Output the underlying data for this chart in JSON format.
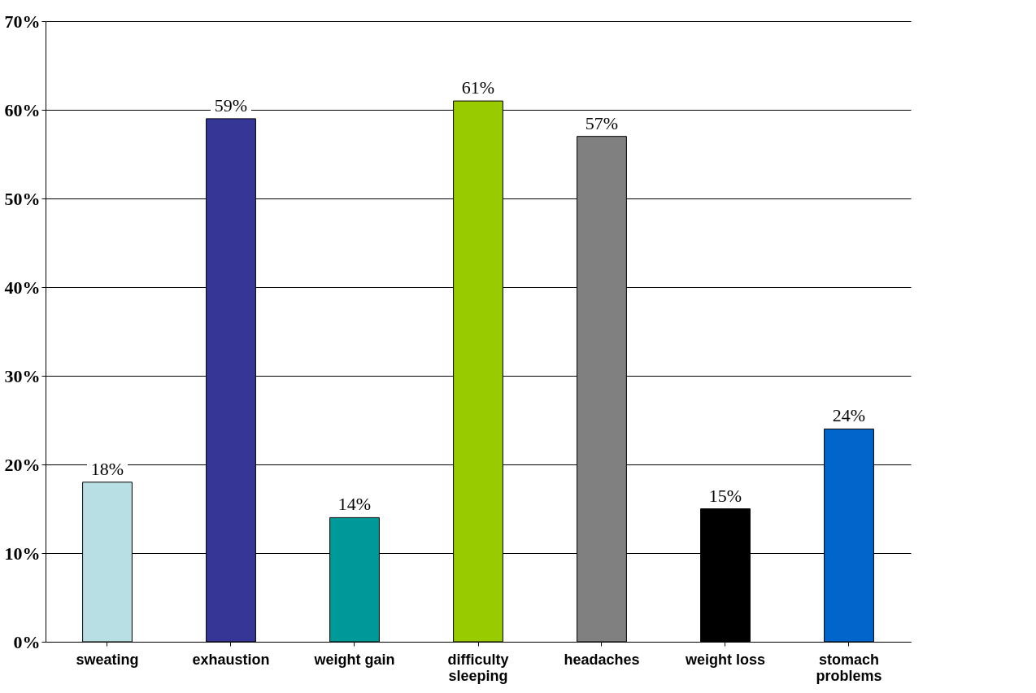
{
  "chart_data": {
    "type": "bar",
    "categories": [
      "sweating",
      "exhaustion",
      "weight gain",
      "difficulty sleeping",
      "headaches",
      "weight loss",
      "stomach problems"
    ],
    "values": [
      18,
      59,
      14,
      61,
      57,
      15,
      24
    ],
    "colors": [
      "#b8e0e4",
      "#363696",
      "#009999",
      "#99cc00",
      "#808080",
      "#000000",
      "#0066cc"
    ],
    "value_labels": [
      "18%",
      "59%",
      "14%",
      "61%",
      "57%",
      "15%",
      "24%"
    ],
    "ylim": [
      0,
      70
    ],
    "yticks": [
      {
        "value": 0,
        "label": "0%"
      },
      {
        "value": 10,
        "label": "10%"
      },
      {
        "value": 20,
        "label": "20%"
      },
      {
        "value": 30,
        "label": "30%"
      },
      {
        "value": 40,
        "label": "40%"
      },
      {
        "value": 50,
        "label": "50%"
      },
      {
        "value": 60,
        "label": "60%"
      },
      {
        "value": 70,
        "label": "70%"
      }
    ],
    "grid": "y"
  }
}
